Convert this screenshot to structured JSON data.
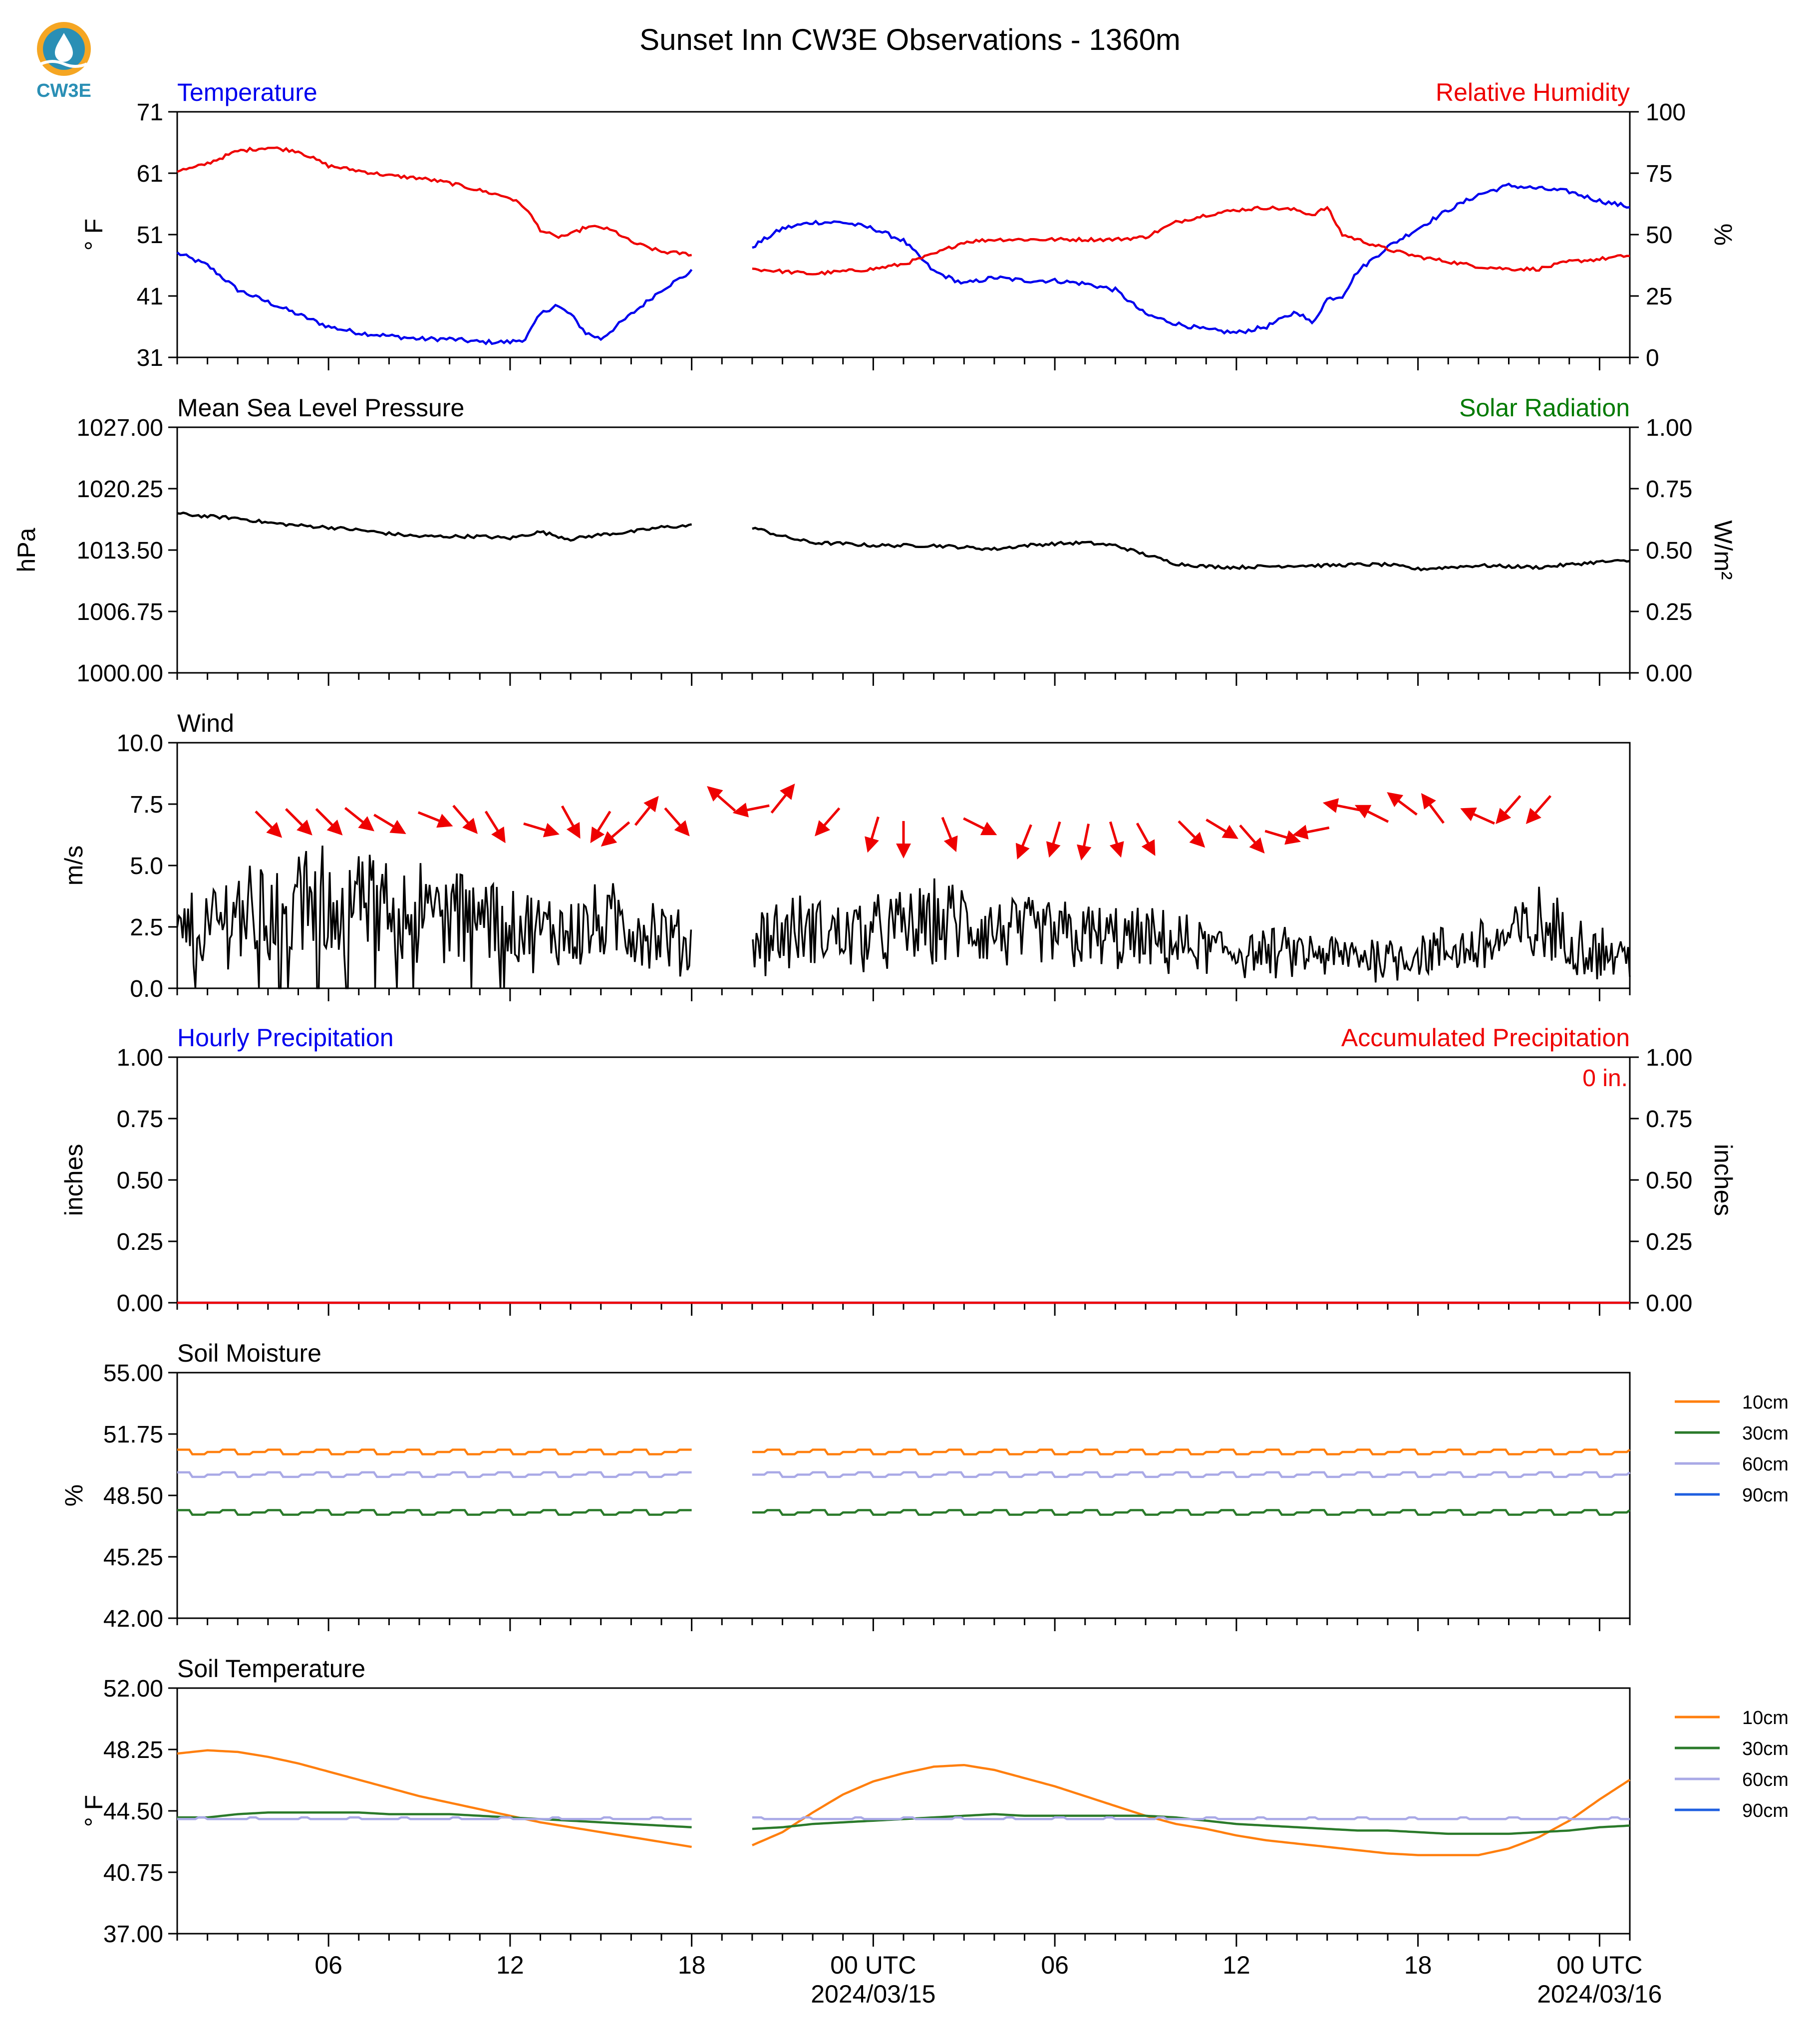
{
  "title": "Sunset Inn CW3E Observations - 1360m",
  "logo_text": "CW3E",
  "colors": {
    "blue": "#0000ee",
    "red": "#ee0000",
    "green": "#007a00",
    "black": "#000000",
    "orange": "#ff7f0e",
    "darkgreen": "#2a7a2a",
    "lavender": "#a9a9e6",
    "soilblue": "#1f5fe0"
  },
  "x_axis": {
    "ticks": [
      {
        "hour": 6,
        "label": "06"
      },
      {
        "hour": 12,
        "label": "12"
      },
      {
        "hour": 18,
        "label": "18"
      },
      {
        "hour": 24,
        "label": "00 UTC",
        "sub": "2024/03/15"
      },
      {
        "hour": 30,
        "label": "06"
      },
      {
        "hour": 36,
        "label": "12"
      },
      {
        "hour": 42,
        "label": "18"
      },
      {
        "hour": 48,
        "label": "00 UTC",
        "sub": "2024/03/16"
      }
    ],
    "range_hours": [
      1,
      49
    ]
  },
  "chart_data": [
    {
      "type": "line",
      "left_title": "Temperature",
      "right_title": "Relative Humidity",
      "ylabel": "° F",
      "ylabel_right": "%",
      "ylim": [
        31,
        71
      ],
      "ylim_right": [
        0,
        100
      ],
      "yticks": [
        "31",
        "41",
        "51",
        "61",
        "71"
      ],
      "yticks_right": [
        "0",
        "25",
        "50",
        "75",
        "100"
      ],
      "gap_hours": [
        18,
        20
      ],
      "series": [
        {
          "name": "Temperature",
          "color": "#0000ee",
          "axis": "left",
          "x": [
            1,
            2,
            3,
            4,
            5,
            6,
            7,
            8,
            9,
            10,
            11,
            12,
            12.5,
            13,
            13.5,
            14,
            14.5,
            15,
            15.5,
            16,
            17,
            18,
            20,
            21,
            22,
            23,
            24,
            25,
            26,
            27,
            28,
            29,
            30,
            31,
            32,
            33,
            34,
            35,
            36,
            37,
            38,
            38.5,
            39,
            39.5,
            40,
            40.5,
            41,
            42,
            43,
            44,
            45,
            46,
            47,
            48,
            49
          ],
          "y": [
            48,
            46,
            42,
            40,
            38,
            36,
            35,
            34.5,
            34,
            34,
            33.5,
            33.5,
            34,
            38,
            39.5,
            38,
            35,
            34,
            36,
            38,
            42,
            45,
            49,
            52,
            53,
            53,
            52,
            50,
            45,
            43,
            44,
            43.5,
            43.5,
            43,
            42,
            38,
            36.5,
            35.5,
            35,
            36,
            38.5,
            36.5,
            40.5,
            41,
            45,
            47,
            49,
            52,
            55,
            57.5,
            59,
            58.5,
            58,
            56.5,
            55.5
          ]
        },
        {
          "name": "Relative Humidity",
          "color": "#ee0000",
          "axis": "right",
          "x": [
            1,
            1.5,
            2,
            3,
            4,
            5,
            6,
            7,
            8,
            9,
            10,
            11,
            12,
            12.5,
            13,
            13.5,
            14,
            14.5,
            15,
            15.5,
            16,
            17,
            18,
            20,
            21,
            22,
            23,
            24,
            25,
            26,
            27,
            28,
            29,
            30,
            31,
            32,
            33,
            34,
            35,
            36,
            37,
            38,
            38.5,
            39,
            39.5,
            40,
            41,
            42,
            43,
            44,
            45,
            46,
            47,
            48,
            49
          ],
          "y": [
            76,
            77,
            79,
            84,
            85.5,
            84,
            78,
            76,
            74,
            73,
            71,
            68,
            65,
            61,
            52,
            49,
            50,
            53,
            53,
            51,
            47,
            43,
            42,
            36,
            35,
            34,
            35,
            36,
            38,
            42,
            47,
            48,
            48,
            48,
            48,
            48,
            49,
            55,
            58,
            60,
            61,
            60,
            58,
            61,
            50,
            48,
            44,
            41,
            39,
            37,
            36,
            36,
            39,
            40,
            41.5
          ]
        }
      ]
    },
    {
      "type": "line",
      "left_title": "Mean Sea Level Pressure",
      "right_title": "Solar Radiation",
      "ylabel": "hPa",
      "ylabel_right": "W/m²",
      "ylim": [
        1000,
        1027
      ],
      "ylim_right": [
        0,
        1
      ],
      "yticks": [
        "1000.00",
        "1006.75",
        "1013.50",
        "1020.25",
        "1027.00"
      ],
      "yticks_right": [
        "0.00",
        "0.25",
        "0.50",
        "0.75",
        "1.00"
      ],
      "gap_hours": [
        18,
        20
      ],
      "series": [
        {
          "name": "Mean Sea Level Pressure",
          "color": "#000000",
          "axis": "left",
          "x": [
            1,
            2,
            3,
            4,
            5,
            6,
            7,
            8,
            9,
            10,
            11,
            12,
            13,
            14,
            15,
            16,
            17,
            18,
            20,
            21,
            22,
            23,
            24,
            25,
            26,
            27,
            28,
            29,
            30,
            31,
            32,
            33,
            34,
            35,
            36,
            37,
            38,
            39,
            40,
            41,
            42,
            43,
            44,
            45,
            46,
            47,
            48,
            49
          ],
          "y": [
            1017.5,
            1017.2,
            1017.0,
            1016.5,
            1016.2,
            1016.0,
            1015.7,
            1015.3,
            1015.0,
            1015.0,
            1015.0,
            1014.8,
            1015.5,
            1014.7,
            1015.2,
            1015.5,
            1016.0,
            1016.2,
            1016.0,
            1015.0,
            1014.3,
            1014.2,
            1014.0,
            1014.0,
            1014.0,
            1013.8,
            1013.6,
            1014.0,
            1014.2,
            1014.3,
            1014.0,
            1013.0,
            1012.0,
            1011.7,
            1011.6,
            1011.7,
            1011.8,
            1011.8,
            1011.9,
            1011.9,
            1011.4,
            1011.6,
            1011.8,
            1011.7,
            1011.6,
            1011.9,
            1012.2,
            1012.3
          ]
        }
      ]
    },
    {
      "type": "line",
      "left_title": "Wind",
      "ylabel": "m/s",
      "ylim": [
        0,
        10
      ],
      "yticks": [
        "0.0",
        "2.5",
        "5.0",
        "7.5",
        "10.0"
      ],
      "gap_hours": [
        18,
        20
      ],
      "series": [
        {
          "name": "Wind",
          "color": "#000000",
          "axis": "left",
          "x": [
            1,
            2,
            3,
            4,
            5,
            6,
            7,
            8,
            9,
            10,
            11,
            12,
            13,
            14,
            15,
            16,
            17,
            18,
            20,
            21,
            22,
            23,
            24,
            25,
            26,
            27,
            28,
            29,
            30,
            31,
            32,
            33,
            34,
            35,
            36,
            37,
            38,
            39,
            40,
            41,
            42,
            43,
            44,
            45,
            46,
            47,
            48,
            49
          ],
          "y": [
            2.2,
            2.5,
            3.2,
            3.2,
            3.3,
            3.5,
            3.4,
            3.2,
            3.1,
            3.0,
            2.8,
            2.6,
            2.3,
            2.4,
            2.5,
            2.6,
            2.2,
            1.6,
            2.1,
            2.2,
            2.3,
            2.2,
            2.2,
            2.4,
            2.6,
            2.7,
            2.3,
            2.2,
            2.2,
            2.1,
            2.0,
            1.9,
            1.8,
            1.6,
            1.5,
            1.4,
            1.4,
            1.3,
            1.3,
            1.3,
            1.4,
            1.5,
            1.7,
            2.0,
            2.5,
            2.0,
            1.5,
            1.2
          ]
        },
        {
          "name": "Wind direction",
          "color": "#ee0000",
          "axis": "left",
          "x": [
            4,
            5,
            6,
            7,
            8,
            9.5,
            10.5,
            11.5,
            13,
            14,
            15,
            15.5,
            16.5,
            17.5,
            19,
            20,
            21,
            22.5,
            24,
            25,
            26.5,
            27.5,
            29,
            30,
            31,
            32,
            33,
            34.5,
            35.5,
            36.5,
            37.5,
            38.5,
            39.5,
            40.5,
            41.5,
            42.5,
            44,
            45,
            46
          ],
          "y": [
            6.7,
            6.8,
            6.8,
            6.9,
            6.7,
            6.9,
            6.9,
            6.6,
            6.5,
            6.8,
            6.6,
            6.3,
            7.2,
            6.8,
            7.7,
            7.3,
            7.7,
            6.8,
            6.3,
            6.1,
            6.3,
            6.6,
            6.0,
            6.1,
            6.0,
            6.1,
            6.1,
            6.3,
            6.5,
            6.1,
            6.2,
            6.4,
            7.4,
            7.1,
            7.5,
            7.3,
            7.0,
            7.3,
            7.3
          ],
          "u": [
            1,
            1,
            1,
            1,
            1,
            1,
            0.6,
            0.5,
            1,
            0.5,
            -0.5,
            -0.7,
            0.8,
            0.7,
            -0.8,
            -1,
            0.8,
            -0.7,
            -0.3,
            0,
            0.4,
            0.8,
            -0.4,
            -0.3,
            -0.2,
            0.3,
            0.5,
            0.8,
            1,
            0.7,
            1,
            -1,
            -1,
            -1,
            -0.8,
            -0.6,
            -0.9,
            -0.7,
            -0.7
          ],
          "v": [
            -1,
            -1,
            -1,
            -0.8,
            -0.6,
            -0.4,
            -0.7,
            -0.8,
            -0.3,
            -0.9,
            -0.8,
            -0.6,
            1,
            -0.8,
            0.7,
            -0.2,
            1,
            -0.8,
            -1,
            -1,
            -1,
            -0.4,
            -1,
            -1,
            -1,
            -1,
            -0.9,
            -0.8,
            -0.6,
            -0.8,
            -0.3,
            -0.2,
            0.2,
            0.5,
            0.6,
            0.8,
            0.4,
            -0.8,
            -0.8
          ]
        }
      ]
    },
    {
      "type": "line",
      "left_title": "Hourly Precipitation",
      "right_title": "Accumulated Precipitation",
      "ylabel": "inches",
      "ylabel_right": "inches",
      "ylim": [
        0,
        1
      ],
      "ylim_right": [
        0,
        1
      ],
      "yticks": [
        "0.00",
        "0.25",
        "0.50",
        "0.75",
        "1.00"
      ],
      "yticks_right": [
        "0.00",
        "0.25",
        "0.50",
        "0.75",
        "1.00"
      ],
      "annotation": "0 in.",
      "series": [
        {
          "name": "Hourly Precipitation",
          "color": "#0000ee",
          "axis": "left",
          "x": [
            1,
            49
          ],
          "y": [
            0,
            0
          ]
        },
        {
          "name": "Accumulated Precipitation",
          "color": "#ee0000",
          "axis": "right",
          "x": [
            1,
            49
          ],
          "y": [
            0,
            0
          ]
        }
      ]
    },
    {
      "type": "line",
      "left_title": "Soil Moisture",
      "ylabel": "%",
      "ylim": [
        42,
        55
      ],
      "yticks": [
        "42.00",
        "45.25",
        "48.50",
        "51.75",
        "55.00"
      ],
      "gap_hours": [
        18,
        20
      ],
      "legend": [
        "10cm",
        "30cm",
        "60cm",
        "90cm"
      ],
      "series": [
        {
          "name": "10cm",
          "color": "#ff7f0e",
          "axis": "left",
          "x": [
            1,
            49
          ],
          "y": [
            50.8,
            50.8
          ]
        },
        {
          "name": "30cm",
          "color": "#2a7a2a",
          "axis": "left",
          "x": [
            1,
            49
          ],
          "y": [
            47.6,
            47.6
          ]
        },
        {
          "name": "60cm",
          "color": "#a9a9e6",
          "axis": "left",
          "x": [
            1,
            49
          ],
          "y": [
            49.6,
            49.6
          ]
        },
        {
          "name": "90cm",
          "color": "#1f5fe0",
          "axis": "left",
          "x": [],
          "y": []
        }
      ]
    },
    {
      "type": "line",
      "left_title": "Soil Temperature",
      "ylabel": "° F",
      "ylim": [
        37,
        52
      ],
      "yticks": [
        "37.00",
        "40.75",
        "44.50",
        "48.25",
        "52.00"
      ],
      "gap_hours": [
        18,
        20
      ],
      "legend": [
        "10cm",
        "30cm",
        "60cm",
        "90cm"
      ],
      "series": [
        {
          "name": "10cm",
          "color": "#ff7f0e",
          "axis": "left",
          "x": [
            1,
            2,
            3,
            4,
            5,
            6,
            7,
            8,
            9,
            10,
            11,
            12,
            13,
            14,
            15,
            16,
            17,
            18,
            20,
            21,
            22,
            23,
            24,
            25,
            26,
            27,
            28,
            29,
            30,
            31,
            32,
            33,
            34,
            35,
            36,
            37,
            38,
            39,
            40,
            41,
            42,
            43,
            44,
            45,
            46,
            47,
            48,
            49
          ],
          "y": [
            48.0,
            48.2,
            48.1,
            47.8,
            47.4,
            46.9,
            46.4,
            45.9,
            45.4,
            45.0,
            44.6,
            44.2,
            43.8,
            43.5,
            43.2,
            42.9,
            42.6,
            42.3,
            42.4,
            43.2,
            44.4,
            45.5,
            46.3,
            46.8,
            47.2,
            47.3,
            47.0,
            46.5,
            46.0,
            45.4,
            44.8,
            44.2,
            43.7,
            43.4,
            43.0,
            42.7,
            42.5,
            42.3,
            42.1,
            41.9,
            41.8,
            41.8,
            41.8,
            42.2,
            42.9,
            43.9,
            45.2,
            46.4
          ]
        },
        {
          "name": "30cm",
          "color": "#2a7a2a",
          "axis": "left",
          "x": [
            1,
            2,
            3,
            4,
            5,
            6,
            7,
            8,
            9,
            10,
            11,
            12,
            13,
            14,
            15,
            16,
            17,
            18,
            20,
            21,
            22,
            23,
            24,
            25,
            26,
            27,
            28,
            29,
            30,
            31,
            32,
            33,
            34,
            35,
            36,
            37,
            38,
            39,
            40,
            41,
            42,
            43,
            44,
            45,
            46,
            47,
            48,
            49
          ],
          "y": [
            44.1,
            44.1,
            44.3,
            44.4,
            44.4,
            44.4,
            44.4,
            44.3,
            44.3,
            44.3,
            44.2,
            44.1,
            44.0,
            43.9,
            43.8,
            43.7,
            43.6,
            43.5,
            43.4,
            43.5,
            43.7,
            43.8,
            43.9,
            44.0,
            44.1,
            44.2,
            44.3,
            44.2,
            44.2,
            44.2,
            44.2,
            44.2,
            44.1,
            43.9,
            43.7,
            43.6,
            43.5,
            43.4,
            43.3,
            43.3,
            43.2,
            43.1,
            43.1,
            43.1,
            43.2,
            43.3,
            43.5,
            43.6
          ]
        },
        {
          "name": "60cm",
          "color": "#a9a9e6",
          "axis": "left",
          "x": [
            1,
            49
          ],
          "y": [
            44.0,
            44.0
          ]
        },
        {
          "name": "90cm",
          "color": "#1f5fe0",
          "axis": "left",
          "x": [],
          "y": []
        }
      ]
    }
  ]
}
